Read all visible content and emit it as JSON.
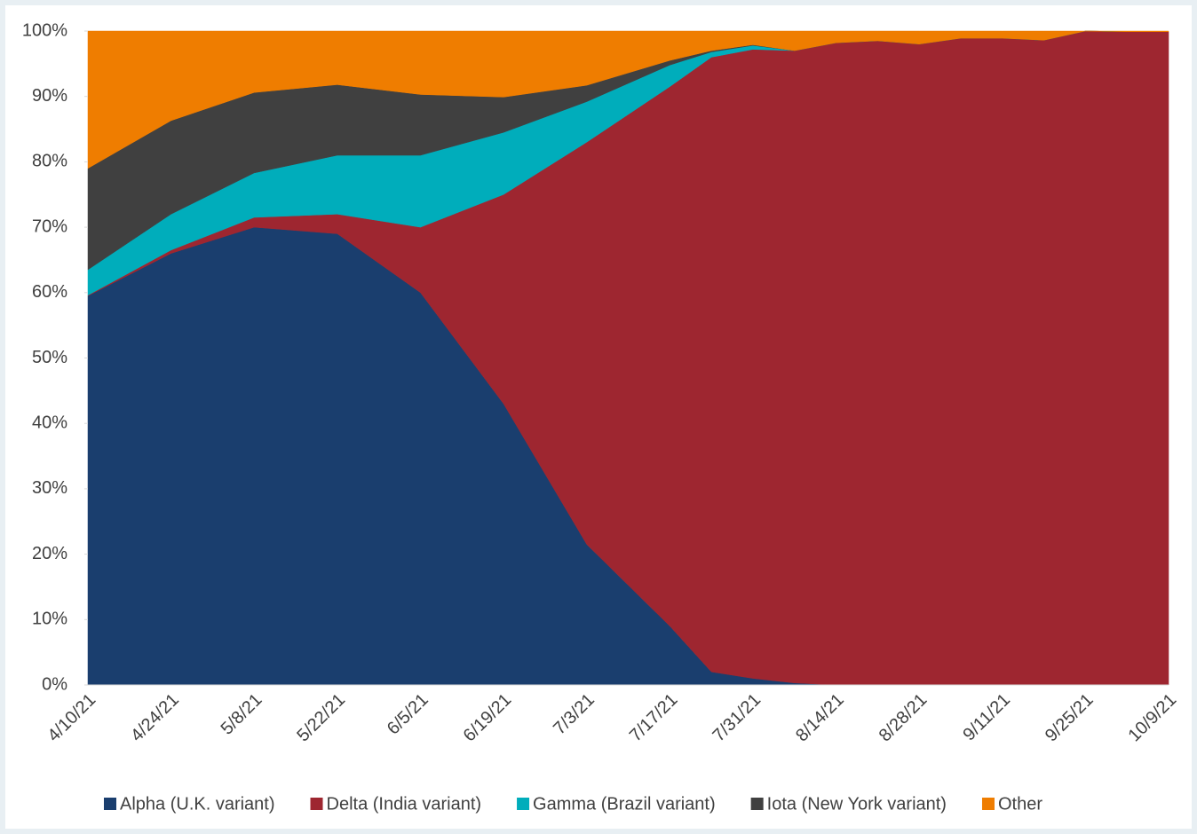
{
  "chart_data": {
    "type": "stacked_area",
    "categories": [
      "4/10/21",
      null,
      "4/24/21",
      null,
      "5/8/21",
      null,
      "5/22/21",
      null,
      "6/5/21",
      null,
      "6/19/21",
      null,
      "7/3/21",
      null,
      "7/17/21",
      null,
      "7/31/21",
      null,
      "8/14/21",
      null,
      "8/28/21",
      null,
      "9/11/21",
      null,
      "9/25/21",
      null,
      "10/9/21"
    ],
    "series": [
      {
        "name": "Alpha (U.K. variant)",
        "color": "#1a3e6e",
        "values": [
          59.5,
          62.75,
          66,
          68,
          70,
          69.5,
          69,
          64.5,
          60,
          51.5,
          43,
          32.25,
          21.5,
          15.25,
          9,
          2,
          1,
          0.3,
          0,
          0,
          0,
          0,
          0,
          0,
          0,
          0,
          0
        ]
      },
      {
        "name": "Delta (India variant)",
        "color": "#9e2630",
        "values": [
          0.1,
          0.3,
          0.5,
          1,
          1.5,
          2.25,
          3,
          6.5,
          10,
          21,
          32,
          46.75,
          61.5,
          72,
          82.5,
          94,
          96.2,
          96.7,
          98.2,
          98.5,
          98,
          98.9,
          98.9,
          98.6,
          100,
          99.9,
          99.9
        ]
      },
      {
        "name": "Gamma (Brazil variant)",
        "color": "#00adbb",
        "values": [
          3.9,
          4.7,
          5.5,
          6.15,
          6.8,
          7.9,
          9,
          10,
          11,
          10.25,
          9.5,
          7.85,
          6.2,
          4.75,
          3.3,
          0.8,
          0.6,
          0,
          0,
          0,
          0,
          0,
          0,
          0,
          0,
          0,
          0
        ]
      },
      {
        "name": "Iota (New York variant)",
        "color": "#404040",
        "values": [
          15.5,
          14.9,
          14.3,
          13.3,
          12.3,
          11.55,
          10.8,
          10.05,
          9.3,
          7.35,
          5.4,
          3.95,
          2.5,
          1.6,
          0.7,
          0.2,
          0.1,
          0,
          0,
          0,
          0,
          0,
          0,
          0,
          0,
          0,
          0
        ]
      },
      {
        "name": "Other",
        "color": "#ef7d00",
        "values": [
          21,
          17.35,
          13.7,
          11.55,
          9.4,
          8.8,
          8.2,
          8.95,
          9.7,
          9.9,
          10.1,
          9.2,
          8.3,
          6.4,
          4.5,
          3,
          2.1,
          3,
          1.8,
          1.5,
          2,
          1.1,
          1.1,
          1.4,
          0,
          0.1,
          0.1
        ]
      }
    ],
    "ylim": [
      0,
      100
    ],
    "yticks": [
      {
        "value": 0,
        "label": "0%"
      },
      {
        "value": 10,
        "label": "10%"
      },
      {
        "value": 20,
        "label": "20%"
      },
      {
        "value": 30,
        "label": "30%"
      },
      {
        "value": 40,
        "label": "40%"
      },
      {
        "value": 50,
        "label": "50%"
      },
      {
        "value": 60,
        "label": "60%"
      },
      {
        "value": 70,
        "label": "70%"
      },
      {
        "value": 80,
        "label": "80%"
      },
      {
        "value": 90,
        "label": "90%"
      },
      {
        "value": 100,
        "label": "100%"
      }
    ],
    "legend": "bottom"
  }
}
